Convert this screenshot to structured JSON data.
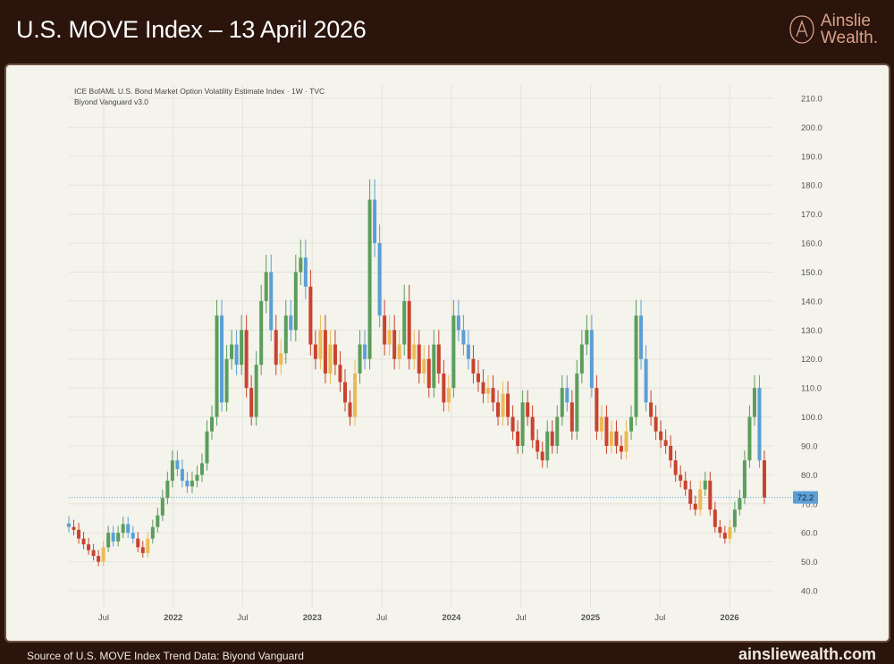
{
  "header": {
    "title": "U.S. MOVE Index – 13 April 2026",
    "logo_line1": "Ainslie",
    "logo_line2": "Wealth",
    "logo_dot": "."
  },
  "footer": {
    "source": "Source of U.S. MOVE Index Trend Data: Biyond Vanguard",
    "site": "ainsliewealth.com"
  },
  "chart_data": {
    "type": "candlestick",
    "title": "ICE BofAML U.S. Bond Market Option Volatility Estimate Index · 1W · TVC",
    "subtitle": "Biyond Vanguard v3.0",
    "ylim": [
      40,
      210
    ],
    "y_ticks": [
      "40.0",
      "50.0",
      "60.0",
      "70.0",
      "80.0",
      "90.0",
      "100.0",
      "110.0",
      "120.0",
      "130.0",
      "140.0",
      "150.0",
      "160.0",
      "170.0",
      "180.0",
      "190.0",
      "200.0",
      "210.0"
    ],
    "x_range_months": [
      "2021-04",
      "2026-04"
    ],
    "x_ticks": [
      {
        "label": "Jul",
        "month": 3
      },
      {
        "label": "2022",
        "month": 9,
        "bold": true
      },
      {
        "label": "Jul",
        "month": 15
      },
      {
        "label": "2023",
        "month": 21,
        "bold": true
      },
      {
        "label": "Jul",
        "month": 27
      },
      {
        "label": "2024",
        "month": 33,
        "bold": true
      },
      {
        "label": "Jul",
        "month": 39
      },
      {
        "label": "2025",
        "month": 45,
        "bold": true
      },
      {
        "label": "Jul",
        "month": 51
      },
      {
        "label": "2026",
        "month": 57,
        "bold": true
      }
    ],
    "last_value": "72.2",
    "grid": true,
    "colors": {
      "up_trend_up": "#5b9e5b",
      "down_trend_up": "#5b9fd6",
      "up_trend_down": "#ebbb55",
      "down_trend_down": "#c9432f",
      "last": "#5b9fd6"
    },
    "closes": [
      62,
      61,
      58,
      56,
      54,
      52,
      50,
      55,
      60,
      57,
      60,
      63,
      60,
      58,
      55,
      53,
      58,
      62,
      66,
      72,
      78,
      85,
      82,
      78,
      76,
      78,
      80,
      84,
      95,
      100,
      135,
      105,
      120,
      125,
      118,
      130,
      110,
      100,
      118,
      140,
      150,
      130,
      118,
      122,
      135,
      130,
      150,
      155,
      145,
      125,
      120,
      130,
      115,
      125,
      118,
      112,
      105,
      100,
      115,
      125,
      120,
      175,
      160,
      135,
      125,
      130,
      120,
      125,
      140,
      120,
      125,
      115,
      120,
      110,
      125,
      115,
      105,
      110,
      135,
      130,
      125,
      120,
      115,
      112,
      108,
      110,
      105,
      100,
      108,
      100,
      95,
      90,
      105,
      100,
      92,
      88,
      85,
      95,
      90,
      100,
      110,
      105,
      95,
      115,
      125,
      130,
      110,
      95,
      100,
      90,
      95,
      90,
      88,
      95,
      100,
      135,
      120,
      105,
      100,
      95,
      92,
      90,
      85,
      80,
      78,
      75,
      70,
      68,
      75,
      78,
      68,
      62,
      60,
      58,
      62,
      68,
      72,
      85,
      100,
      110,
      85,
      72.2
    ]
  }
}
